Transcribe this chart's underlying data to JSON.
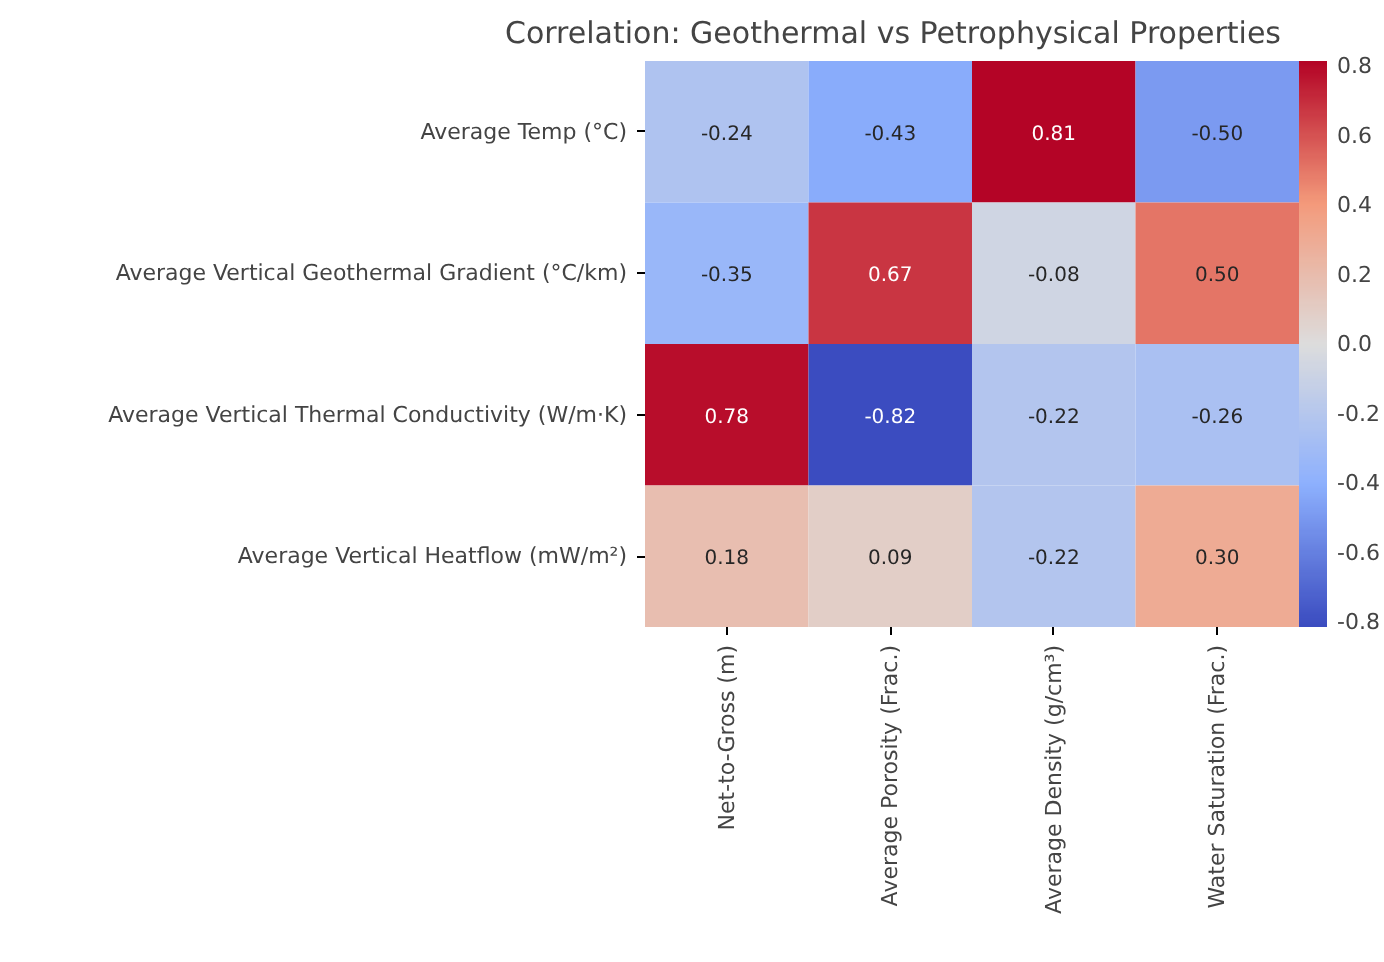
{
  "chart_data": {
    "type": "heatmap",
    "title": "Correlation: Geothermal vs Petrophysical Properties",
    "categories": [
      "Net-to-Gross (m)",
      "Average Porosity (Frac.)",
      "Average Density (g/cm³)",
      "Water Saturation (Frac.)"
    ],
    "y_categories": [
      "Average Temp (°C)",
      "Average Vertical Geothermal Gradient (°C/km)",
      "Average Vertical Thermal Conductivity (W/m·K)",
      "Average Vertical Heatflow (mW/m²)"
    ],
    "cells": [
      [
        -0.24,
        -0.43,
        0.81,
        -0.5
      ],
      [
        -0.35,
        0.67,
        -0.08,
        0.5
      ],
      [
        0.78,
        -0.82,
        -0.22,
        -0.26
      ],
      [
        0.18,
        0.09,
        -0.22,
        0.3
      ]
    ],
    "cell_labels": [
      [
        "-0.24",
        "-0.43",
        "0.81",
        "-0.50"
      ],
      [
        "-0.35",
        "0.67",
        "-0.08",
        "0.50"
      ],
      [
        "0.78",
        "-0.82",
        "-0.22",
        "-0.26"
      ],
      [
        "0.18",
        "0.09",
        "-0.22",
        "0.30"
      ]
    ],
    "clim": [
      -0.82,
      0.81
    ],
    "cticks": [
      -0.8,
      -0.6,
      -0.4,
      -0.2,
      {
        "value": 0,
        "label": "0.0"
      },
      0.2,
      0.4,
      0.6,
      0.8
    ]
  }
}
